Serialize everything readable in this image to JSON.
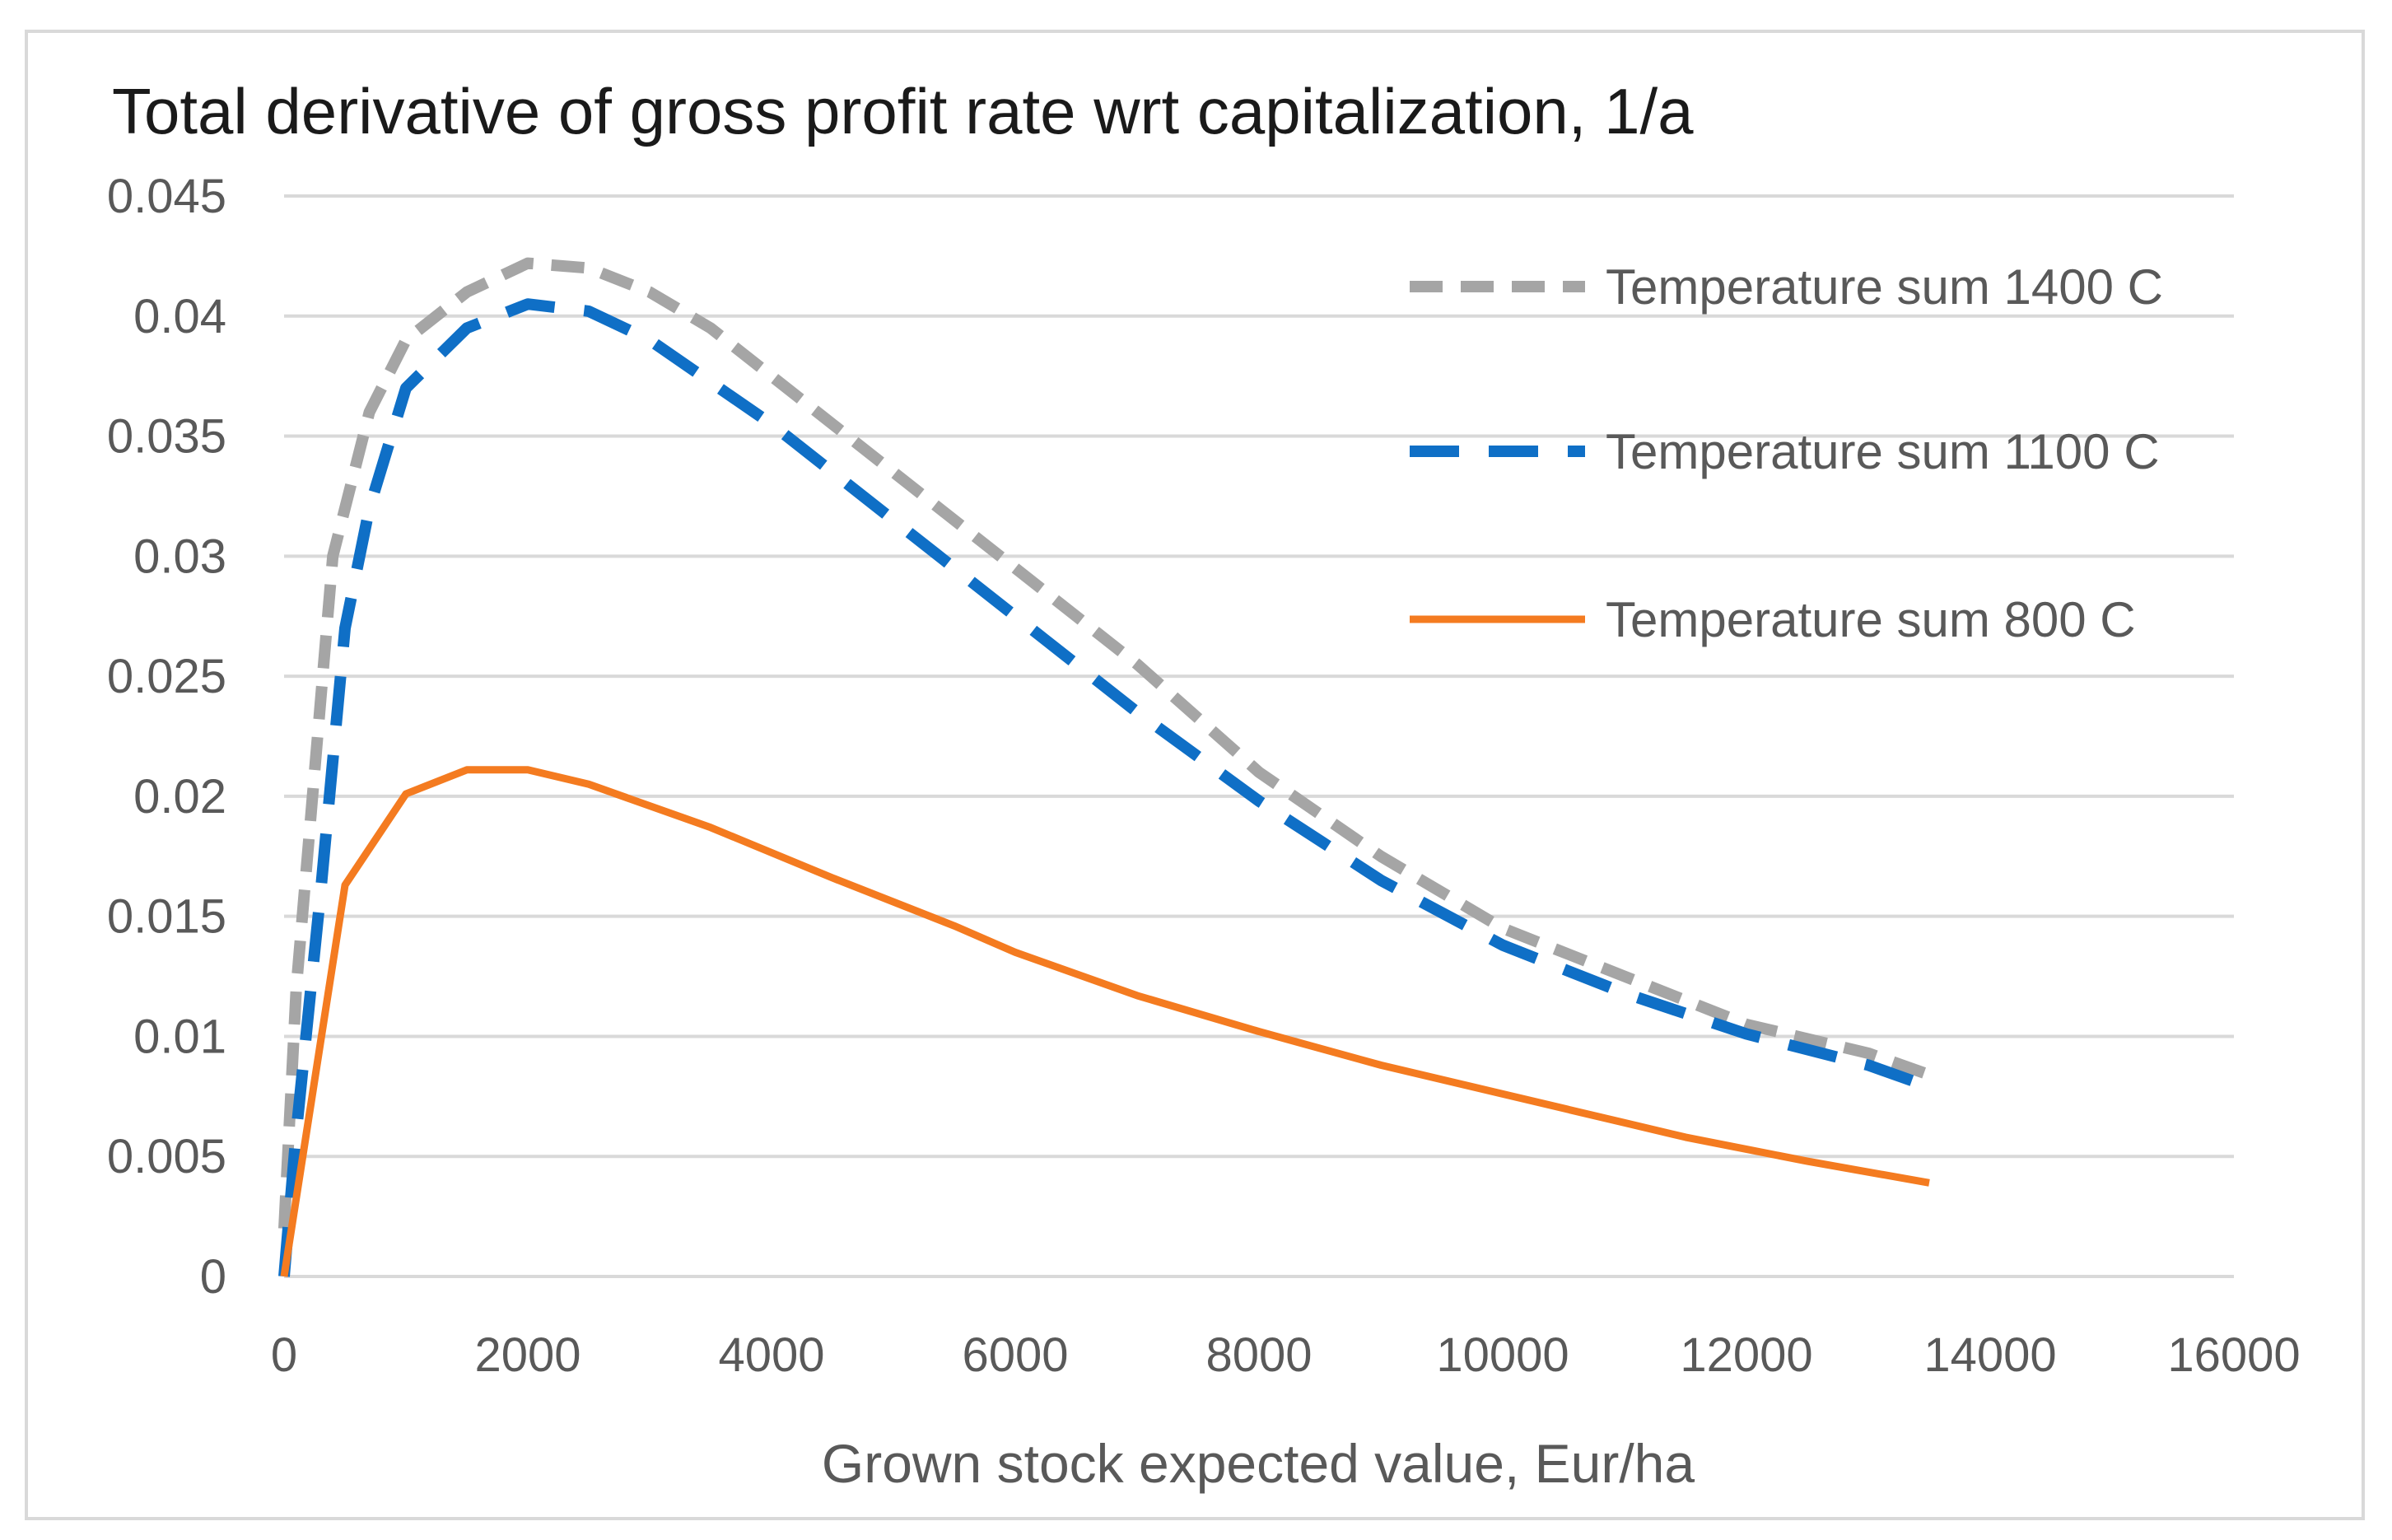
{
  "chart_data": {
    "type": "line",
    "title": "Total derivative of gross profit rate wrt capitalization, 1/a",
    "xlabel": "Grown stock expected value, Eur/ha",
    "ylabel": "",
    "xlim": [
      0,
      16000
    ],
    "ylim": [
      0,
      0.045
    ],
    "x_ticks": [
      "0",
      "2000",
      "4000",
      "6000",
      "8000",
      "10000",
      "12000",
      "14000",
      "16000"
    ],
    "y_ticks": [
      "0",
      "0.005",
      "0.01",
      "0.015",
      "0.02",
      "0.025",
      "0.03",
      "0.035",
      "0.04",
      "0.045"
    ],
    "grid": "horizontal",
    "legend_position": "top-right",
    "series": [
      {
        "name": "Temperature sum 1400 C",
        "color": "#a5a5a5",
        "style": "dashed",
        "x": [
          0,
          100,
          400,
          700,
          1000,
          1500,
          2000,
          2500,
          3000,
          3500,
          4000,
          5000,
          6000,
          7000,
          8000,
          9000,
          10000,
          11000,
          12000,
          13000,
          13500
        ],
        "y": [
          0.002,
          0.012,
          0.03,
          0.036,
          0.039,
          0.041,
          0.0422,
          0.042,
          0.041,
          0.0395,
          0.0375,
          0.0335,
          0.0295,
          0.0255,
          0.021,
          0.0175,
          0.0145,
          0.0125,
          0.0105,
          0.0093,
          0.0084
        ]
      },
      {
        "name": "Temperature sum 1100 C",
        "color": "#0f6fc6",
        "style": "dashed",
        "x": [
          0,
          100,
          300,
          500,
          700,
          1000,
          1500,
          2000,
          2500,
          3000,
          4000,
          5000,
          6000,
          7000,
          8000,
          9000,
          10000,
          11000,
          12000,
          13000,
          13500
        ],
        "y": [
          0.0,
          0.006,
          0.016,
          0.027,
          0.032,
          0.037,
          0.0395,
          0.0405,
          0.0402,
          0.039,
          0.0355,
          0.0315,
          0.0275,
          0.0235,
          0.0198,
          0.0165,
          0.0138,
          0.0118,
          0.0101,
          0.0088,
          0.0079
        ]
      },
      {
        "name": "Temperature sum 800 C",
        "color": "#f47b20",
        "style": "solid",
        "x": [
          0,
          500,
          1000,
          1500,
          2000,
          2500,
          3500,
          4500,
          5500,
          6000,
          7000,
          8000,
          9000,
          10000,
          11000,
          11500,
          12500,
          13500
        ],
        "y": [
          0.0,
          0.0163,
          0.0201,
          0.0211,
          0.0211,
          0.0205,
          0.0187,
          0.0166,
          0.0146,
          0.0135,
          0.0117,
          0.0102,
          0.0088,
          0.0076,
          0.0064,
          0.0058,
          0.0048,
          0.0039
        ]
      }
    ]
  }
}
